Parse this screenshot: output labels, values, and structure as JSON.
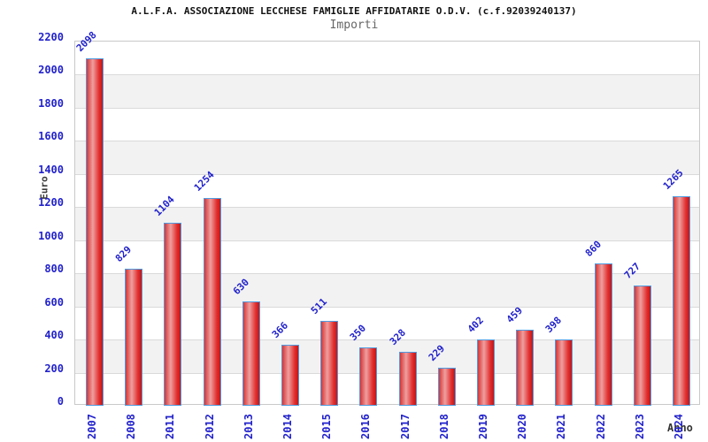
{
  "chart_data": {
    "type": "bar",
    "title": "A.L.F.A. ASSOCIAZIONE LECCHESE FAMIGLIE AFFIDATARIE O.D.V. (c.f.92039240137)",
    "subtitle": "Importi",
    "xlabel": "Anno",
    "ylabel": "Euro",
    "categories": [
      "2007",
      "2008",
      "2011",
      "2012",
      "2013",
      "2014",
      "2015",
      "2016",
      "2017",
      "2018",
      "2019",
      "2020",
      "2021",
      "2022",
      "2023",
      "2024"
    ],
    "values": [
      2098,
      829,
      1104,
      1254,
      630,
      366,
      511,
      350,
      328,
      229,
      402,
      459,
      398,
      860,
      727,
      1265
    ],
    "ylim": [
      0,
      2200
    ],
    "ytick_step": 200,
    "ytick_labels": [
      "0",
      "200",
      "400",
      "600",
      "800",
      "1000",
      "1200",
      "1400",
      "1600",
      "1800",
      "2000",
      "2200"
    ],
    "grid": "horizontal",
    "legend": "none",
    "colors": {
      "bar_fill_edge": "#d63535",
      "bar_fill_center": "#ef9f9f",
      "bar_border": "#4f9be0",
      "tick_text": "#2222cc",
      "title_text": "#111111",
      "subtitle_text": "#666666",
      "axis_title_text": "#333333",
      "band_alt": "#f2f2f2",
      "gridline": "#dadada",
      "plot_border": "#c9c9c9"
    }
  }
}
